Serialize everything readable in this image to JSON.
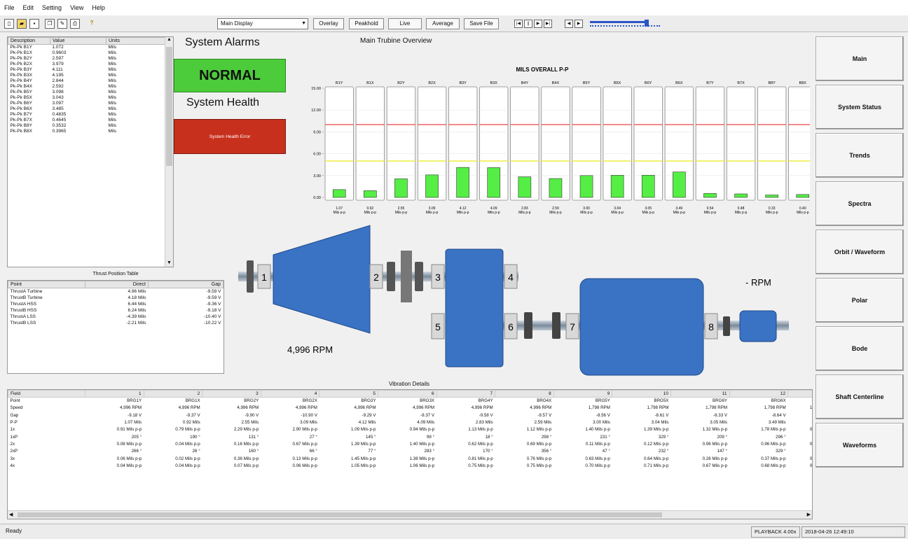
{
  "menu": [
    "File",
    "Edit",
    "Setting",
    "View",
    "Help"
  ],
  "toolbar": {
    "display": "Main Display",
    "buttons": [
      "Overlay",
      "Peakhold",
      "Live",
      "Average",
      "Save File"
    ]
  },
  "alarm_list": {
    "headers": [
      "Description",
      "Value",
      "Units"
    ],
    "rows": [
      [
        "Pk-Pk B1Y",
        "1.072",
        "Mils"
      ],
      [
        "Pk-Pk B1X",
        "0.9603",
        "Mils"
      ],
      [
        "Pk-Pk B2Y",
        "2.597",
        "Mils"
      ],
      [
        "Pk-Pk B2X",
        "3.979",
        "Mils"
      ],
      [
        "Pk-Pk B3Y",
        "4.111",
        "Mils"
      ],
      [
        "Pk-Pk B3X",
        "4.195",
        "Mils"
      ],
      [
        "Pk-Pk B4Y",
        "2.844",
        "Mils"
      ],
      [
        "Pk-Pk B4X",
        "2.592",
        "Mils"
      ],
      [
        "Pk-Pk B5Y",
        "3.098",
        "Mils"
      ],
      [
        "Pk-Pk B5X",
        "3.043",
        "Mils"
      ],
      [
        "Pk-Pk B6Y",
        "3.097",
        "Mils"
      ],
      [
        "Pk-Pk B6X",
        "3.485",
        "Mils"
      ],
      [
        "Pk-Pk B7Y",
        "0.4835",
        "Mils"
      ],
      [
        "Pk-Pk B7X",
        "0.4645",
        "Mils"
      ],
      [
        "Pk-Pk B8Y",
        "0.3532",
        "Mils"
      ],
      [
        "Pk-Pk B8X",
        "0.3965",
        "Mils"
      ]
    ]
  },
  "alarms": {
    "title": "System Alarms",
    "status": "NORMAL",
    "health_title": "System Health",
    "health_error": "System Health Error"
  },
  "overview_title": "Main Trubine Overview",
  "chart_data": {
    "type": "bar",
    "title": "MILS OVERALL P-P",
    "categories": [
      "B1Y",
      "B1X",
      "B2Y",
      "B2X",
      "B3Y",
      "B3X",
      "B4Y",
      "B4X",
      "B5Y",
      "B5X",
      "B6Y",
      "B6X",
      "B7Y",
      "B7X",
      "B8Y",
      "B8X"
    ],
    "values": [
      1.07,
      0.92,
      2.55,
      3.09,
      4.12,
      4.09,
      2.83,
      2.59,
      3.0,
      3.04,
      3.05,
      3.49,
      0.54,
      0.48,
      0.33,
      0.4
    ],
    "value_labels": [
      "1.07",
      "0.92",
      "2.55",
      "3.09",
      "4.12",
      "4.09",
      "2.83",
      "2.59",
      "3.00",
      "3.04",
      "3.05",
      "3.49",
      "0.54",
      "0.48",
      "0.33",
      "0.40"
    ],
    "unit": "Mils p-p",
    "yticks": [
      "15.00",
      "12.00",
      "9.00",
      "6.00",
      "3.00",
      "0.00"
    ],
    "ylim": [
      0,
      15
    ],
    "alarm_level": 10,
    "alert_level": 5,
    "colors": {
      "bar": "#55ee44",
      "alarm": "#ee4444",
      "alert": "#eeee44"
    }
  },
  "machine": {
    "bearings": [
      "1",
      "2",
      "3",
      "4",
      "5",
      "6",
      "7",
      "8"
    ],
    "speed": "4,996 RPM",
    "rpm2": "- RPM",
    "color": "#3a72c4"
  },
  "thrust": {
    "title": "Thrust Position Table",
    "headers": [
      "Point",
      "Direct",
      "Gap"
    ],
    "rows": [
      [
        "ThrustA Turbine",
        "4.96 Mils",
        "-9.59 V"
      ],
      [
        "ThrustB Turbine",
        "4.18 Mils",
        "-9.59 V"
      ],
      [
        "ThrustA HSS",
        "6.44 Mils",
        "-9.36 V"
      ],
      [
        "ThrustB HSS",
        "6.24 Mils",
        "-9.18 V"
      ],
      [
        "ThrustA LSS",
        "-4.39 Mils",
        "-10.40 V"
      ],
      [
        "ThrustB LSS",
        "-2.21 Mils",
        "-10.22 V"
      ]
    ]
  },
  "vibration": {
    "title": "Vibration Details",
    "headers": [
      "Field",
      "1",
      "2",
      "3",
      "4",
      "5",
      "6",
      "7",
      "8",
      "9",
      "10",
      "11",
      "12",
      "13"
    ],
    "rows": [
      [
        "Point",
        "BRG1Y",
        "BRG1X",
        "BRG2Y",
        "BRG2X",
        "BRG3Y",
        "BRG3X",
        "BRG4Y",
        "BRG4X",
        "BRG5Y",
        "BRG5X",
        "BRG6Y",
        "BRG6X",
        "BRG"
      ],
      [
        "Speed",
        "4,996 RPM",
        "4,996 RPM",
        "4,996 RPM",
        "4,996 RPM",
        "4,996 RPM",
        "4,996 RPM",
        "4,996 RPM",
        "4,996 RPM",
        "1,798 RPM",
        "1,798 RPM",
        "1,798 RPM",
        "1,798 RPM",
        "1,798 R"
      ],
      [
        "Gap",
        "-9.18 V",
        "-9.37 V",
        "-9.90 V",
        "-10.90 V",
        "-9.29 V",
        "-9.37 V",
        "-9.58 V",
        "-9.57 V",
        "-8.56 V",
        "-8.61 V",
        "-8.33 V",
        "-8.64 V",
        "-8.8"
      ],
      [
        "P-P",
        "1.07 Mils",
        "0.92 Mils",
        "2.55 Mils",
        "3.09 Mils",
        "4.12 Mils",
        "4.09 Mils",
        "2.83 Mils",
        "2.59 Mils",
        "3.00 Mils",
        "3.04 Mils",
        "3.05 Mils",
        "3.49 Mils",
        "0.54 M"
      ],
      [
        "1x",
        "0.91 Mils p-p",
        "0.79 Mils p-p",
        "2.29 Mils p-p",
        "2.90 Mils p-p",
        "1.09 Mils p-p",
        "0.94 Mils p-p",
        "1.13 Mils p-p",
        "1.12 Mils p-p",
        "1.40 Mils p-p",
        "1.39 Mils p-p",
        "1.32 Mils p-p",
        "1.78 Mils p-p",
        "0.29 Mil"
      ],
      [
        "1xP",
        "205 °",
        "190 °",
        "131 °",
        "27 °",
        "145 °",
        "99 °",
        "18 °",
        "298 °",
        "231 °",
        "329 °",
        "209 °",
        "296 °",
        "1"
      ],
      [
        "2x",
        "0.08 Mils p-p",
        "0.04 Mils p-p",
        "0.16 Mils p-p",
        "0.67 Mils p-p",
        "1.39 Mils p-p",
        "1.40 Mils p-p",
        "0.62 Mils p-p",
        "0.69 Mils p-p",
        "0.11 Mils p-p",
        "0.12 Mils p-p",
        "0.96 Mils p-p",
        "0.96 Mils p-p",
        "0.06 Mil"
      ],
      [
        "2xP",
        "266 °",
        "26 °",
        "160 °",
        "66 °",
        "77 °",
        "283 °",
        "170 °",
        "356 °",
        "47 °",
        "232 °",
        "147 °",
        "329 °",
        "1"
      ],
      [
        "3x",
        "0.06 Mils p-p",
        "0.02 Mils p-p",
        "0.36 Mils p-p",
        "0.13 Mils p-p",
        "1.45 Mils p-p",
        "1.38 Mils p-p",
        "0.81 Mils p-p",
        "0.76 Mils p-p",
        "0.63 Mils p-p",
        "0.64 Mils p-p",
        "0.26 Mils p-p",
        "0.37 Mils p-p",
        "0.06 Mil"
      ],
      [
        "4x",
        "0.04 Mils p-p",
        "0.04 Mils p-p",
        "0.07 Mils p-p",
        "0.06 Mils p-p",
        "1.05 Mils p-p",
        "1.06 Mils p-p",
        "0.75 Mils p-p",
        "0.75 Mils p-p",
        "0.70 Mils p-p",
        "0.71 Mils p-p",
        "0.67 Mils p-p",
        "0.68 Mils p-p",
        "0.03 Mil"
      ]
    ]
  },
  "nav": [
    "Main",
    "System Status",
    "Trends",
    "Spectra",
    "Orbit / Waveform",
    "Polar",
    "Bode",
    "Shaft Centerline",
    "Waveforms"
  ],
  "status": {
    "left": "Ready",
    "mode": "PLAYBACK 4.00x",
    "datetime": "2018-04-26 12:49:10"
  }
}
